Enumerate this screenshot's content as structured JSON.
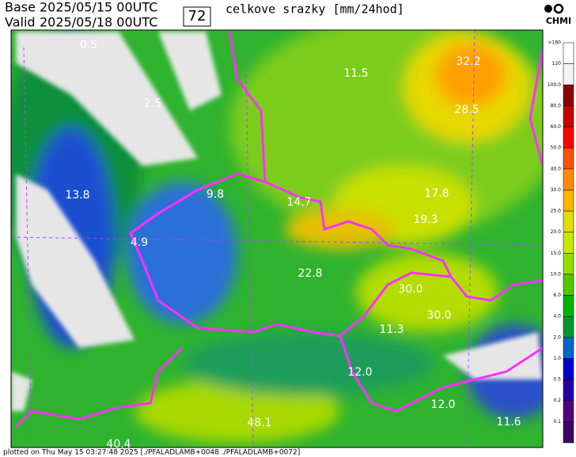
{
  "header": {
    "base_label": "Base",
    "base": "2025/05/15 00UTC",
    "valid_label": "Valid",
    "valid": "2025/05/18 00UTC",
    "lead": "72",
    "title": "celkove srazky [mm/24hod]",
    "logo": "CHMI"
  },
  "map": {
    "labels": [
      "0.5",
      "2.5",
      "11.5",
      "32.2",
      "28.5",
      "13.8",
      "9.8",
      "14.7",
      "17.8",
      "19.3",
      "4.9",
      "22.8",
      "30.0",
      "30.0",
      "11.3",
      "12.0",
      "12.0",
      "48.1",
      "11.6",
      "40.4"
    ]
  },
  "legend": {
    "items": [
      {
        "label": ">160",
        "color": "#ffffff"
      },
      {
        "label": "120",
        "color": "#f4f4f4"
      },
      {
        "label": "100.0",
        "color": "#8b0000"
      },
      {
        "label": "80.0",
        "color": "#c80000"
      },
      {
        "label": "60.0",
        "color": "#ff0000"
      },
      {
        "label": "50.0",
        "color": "#ff5000"
      },
      {
        "label": "40.0",
        "color": "#ff8c00"
      },
      {
        "label": "30.0",
        "color": "#ffb400"
      },
      {
        "label": "25.0",
        "color": "#e6dc00"
      },
      {
        "label": "20.0",
        "color": "#c8e600"
      },
      {
        "label": "15.0",
        "color": "#96dc00"
      },
      {
        "label": "10.0",
        "color": "#50c800"
      },
      {
        "label": "6.0",
        "color": "#00b400"
      },
      {
        "label": "4.0",
        "color": "#009632"
      },
      {
        "label": "2.0",
        "color": "#0064c8"
      },
      {
        "label": "1.0",
        "color": "#0000c8"
      },
      {
        "label": "0.5",
        "color": "#2800a0"
      },
      {
        "label": "0.2",
        "color": "#50007d"
      },
      {
        "label": "0.1",
        "color": "#3c0064"
      }
    ]
  },
  "footer": "plotted on Thu May 15 03:27:48 2025 [./PFALADLAMB+0048 ./PFALADLAMB+0072]"
}
